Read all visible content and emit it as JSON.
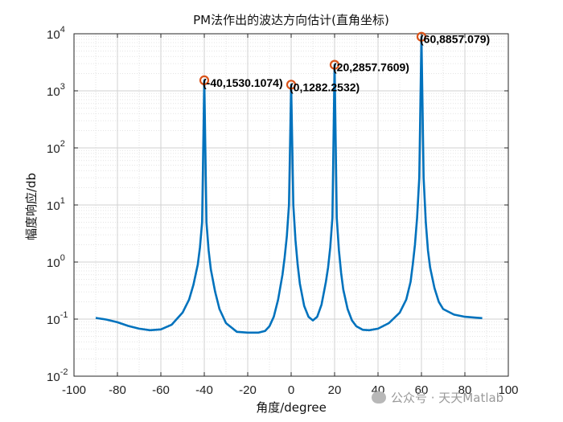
{
  "chart_data": {
    "type": "line",
    "title": "PM法作出的波达方向估计(直角坐标)",
    "xlabel": "角度/degree",
    "ylabel": "幅度响应/db",
    "xlim": [
      -100,
      100
    ],
    "ylim_log10": [
      -2,
      4
    ],
    "yscale": "log",
    "grid": true,
    "minor_grid": true,
    "xticks": [
      "-100",
      "-80",
      "-60",
      "-40",
      "-20",
      "0",
      "20",
      "40",
      "60",
      "80",
      "100"
    ],
    "yticks": [
      {
        "base": "10",
        "exp": "-2"
      },
      {
        "base": "10",
        "exp": "-1"
      },
      {
        "base": "10",
        "exp": "0"
      },
      {
        "base": "10",
        "exp": "1"
      },
      {
        "base": "10",
        "exp": "2"
      },
      {
        "base": "10",
        "exp": "3"
      },
      {
        "base": "10",
        "exp": "4"
      }
    ],
    "series": [
      {
        "color": "#0072BD",
        "x": [
          -90,
          -85,
          -80,
          -75,
          -70,
          -65,
          -60,
          -55,
          -50,
          -47,
          -45,
          -43,
          -42,
          -41,
          -40,
          -39,
          -38,
          -37,
          -35,
          -33,
          -30,
          -25,
          -20,
          -15,
          -12,
          -10,
          -8,
          -6,
          -4,
          -3,
          -2,
          -1,
          0,
          1,
          2,
          3,
          4,
          6,
          8,
          10,
          12,
          14,
          16,
          17,
          18,
          19,
          20,
          21,
          22,
          23,
          24,
          26,
          28,
          30,
          33,
          36,
          40,
          45,
          50,
          53,
          55,
          56,
          57,
          58,
          59,
          60,
          61,
          62,
          63,
          64,
          66,
          68,
          70,
          75,
          80,
          85,
          88
        ],
        "y": [
          0.105,
          0.098,
          0.088,
          0.076,
          0.068,
          0.064,
          0.066,
          0.08,
          0.13,
          0.22,
          0.4,
          0.9,
          1.8,
          5,
          1530.1074,
          5,
          1.6,
          0.75,
          0.3,
          0.15,
          0.085,
          0.06,
          0.058,
          0.058,
          0.062,
          0.075,
          0.11,
          0.22,
          0.6,
          1.2,
          2.8,
          10,
          1282.2532,
          10,
          2.4,
          0.9,
          0.42,
          0.17,
          0.11,
          0.095,
          0.11,
          0.18,
          0.45,
          0.8,
          1.8,
          6,
          2857.7609,
          6,
          1.6,
          0.65,
          0.33,
          0.15,
          0.095,
          0.075,
          0.065,
          0.064,
          0.068,
          0.085,
          0.13,
          0.22,
          0.45,
          0.9,
          2,
          6,
          30,
          8857.079,
          30,
          5,
          1.6,
          0.8,
          0.35,
          0.2,
          0.15,
          0.12,
          0.11,
          0.106,
          0.104
        ]
      }
    ],
    "markers": {
      "color": "#D95319",
      "points": [
        {
          "x": -40,
          "y": 1530.1074
        },
        {
          "x": 0,
          "y": 1282.2532
        },
        {
          "x": 20,
          "y": 2857.7609
        },
        {
          "x": 60,
          "y": 8857.079
        }
      ]
    },
    "annotations": [
      "(-40,1530.1074)",
      "(0,1282.2532)",
      "(20,2857.7609)",
      "(60,8857.079)"
    ]
  },
  "watermark": {
    "text": "公众号 · 天天Matlab",
    "icon": "wechat-icon"
  }
}
